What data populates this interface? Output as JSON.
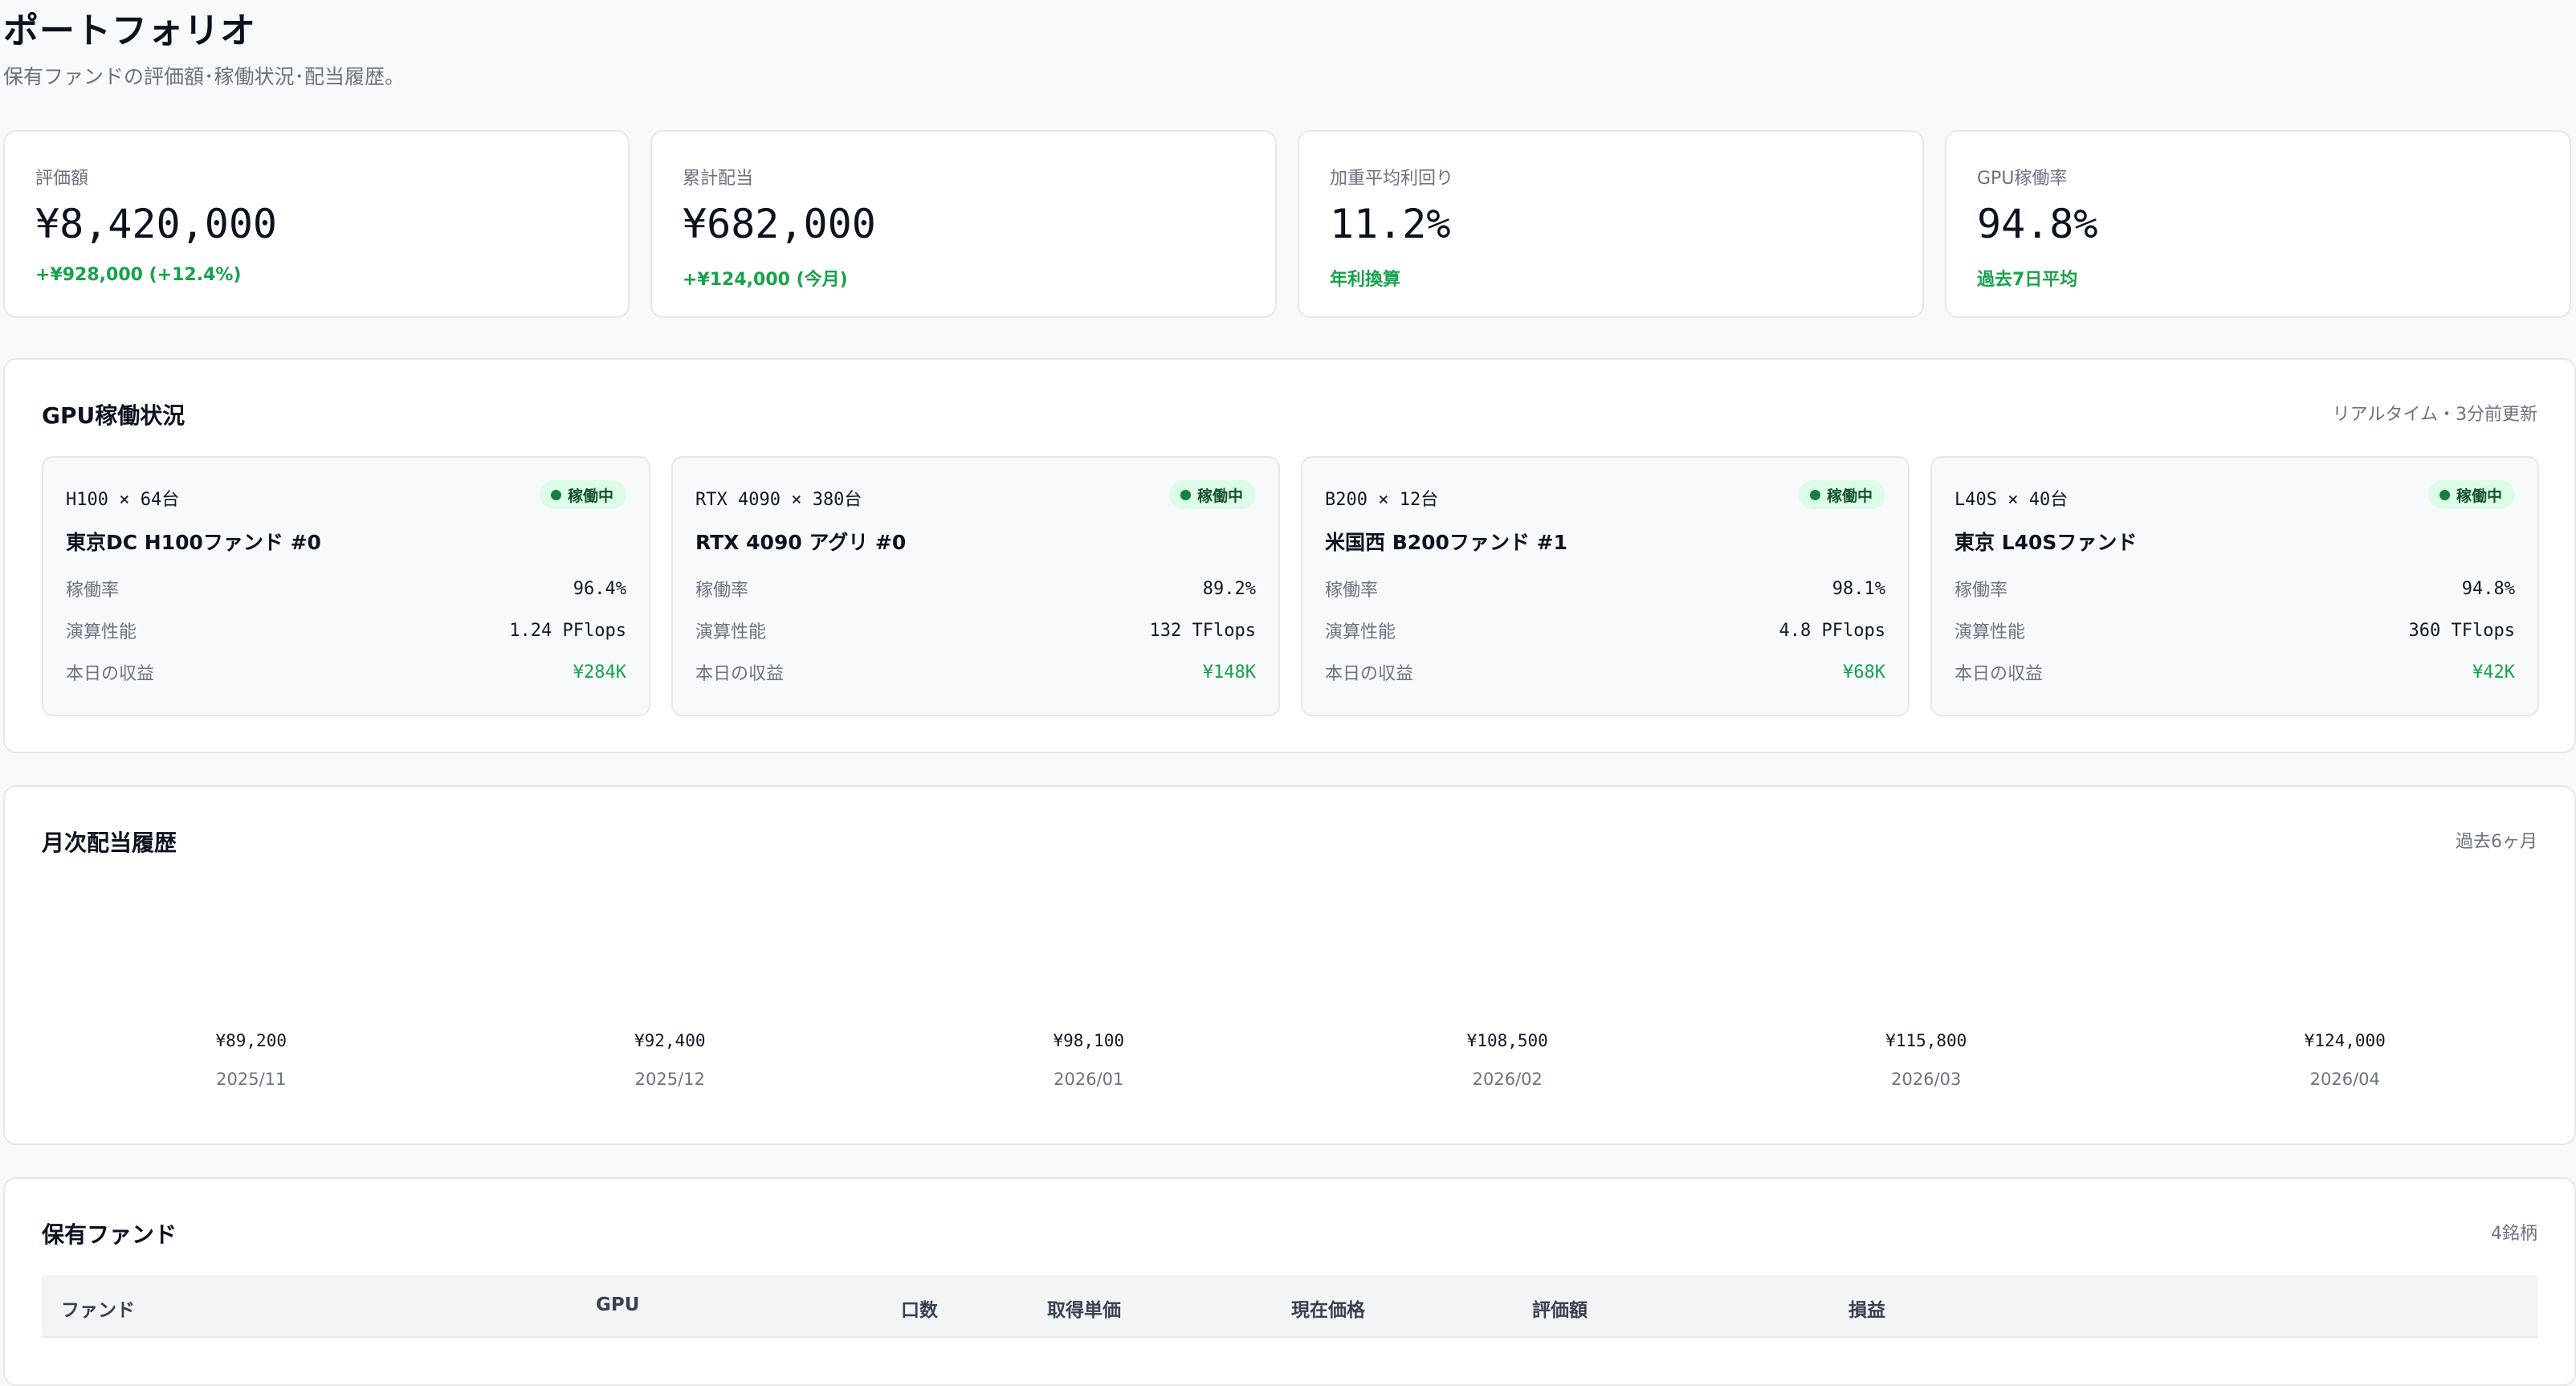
{
  "page": {
    "title": "ポートフォリオ",
    "subtitle": "保有ファンドの評価額･稼働状況･配当履歴。"
  },
  "stats": [
    {
      "label": "評価額",
      "value": "¥8,420,000",
      "delta": "+¥928,000 (+12.4%)"
    },
    {
      "label": "累計配当",
      "value": "¥682,000",
      "delta": "+¥124,000 (今月)"
    },
    {
      "label": "加重平均利回り",
      "value": "11.2%",
      "delta": "年利換算"
    },
    {
      "label": "GPU稼働率",
      "value": "94.8%",
      "delta": "過去7日平均"
    }
  ],
  "gpu_section": {
    "title": "GPU稼働状況",
    "meta": "リアルタイム・3分前更新",
    "status_label": "稼働中",
    "row_labels": {
      "util": "稼働率",
      "perf": "演算性能",
      "revenue": "本日の収益"
    },
    "cards": [
      {
        "spec": "H100 × 64台",
        "name": "東京DC H100ファンド #0",
        "util": "96.4%",
        "perf": "1.24 PFlops",
        "revenue": "¥284K"
      },
      {
        "spec": "RTX 4090 × 380台",
        "name": "RTX 4090 アグリ #0",
        "util": "89.2%",
        "perf": "132 TFlops",
        "revenue": "¥148K"
      },
      {
        "spec": "B200 × 12台",
        "name": "米国西 B200ファンド #1",
        "util": "98.1%",
        "perf": "4.8 PFlops",
        "revenue": "¥68K"
      },
      {
        "spec": "L40S × 40台",
        "name": "東京 L40Sファンド",
        "util": "94.8%",
        "perf": "360 TFlops",
        "revenue": "¥42K"
      }
    ]
  },
  "dividend_section": {
    "title": "月次配当履歴",
    "meta": "過去6ヶ月"
  },
  "chart_data": {
    "type": "bar",
    "categories": [
      "2025/11",
      "2025/12",
      "2026/01",
      "2026/02",
      "2026/03",
      "2026/04"
    ],
    "values": [
      89200,
      92400,
      98100,
      108500,
      115800,
      124000
    ],
    "value_labels": [
      "¥89,200",
      "¥92,400",
      "¥98,100",
      "¥108,500",
      "¥115,800",
      "¥124,000"
    ],
    "title": "月次配当履歴"
  },
  "holdings_section": {
    "title": "保有ファンド",
    "meta": "4銘柄",
    "columns": [
      "ファンド",
      "GPU",
      "口数",
      "取得単価",
      "現在価格",
      "評価額",
      "損益"
    ]
  }
}
